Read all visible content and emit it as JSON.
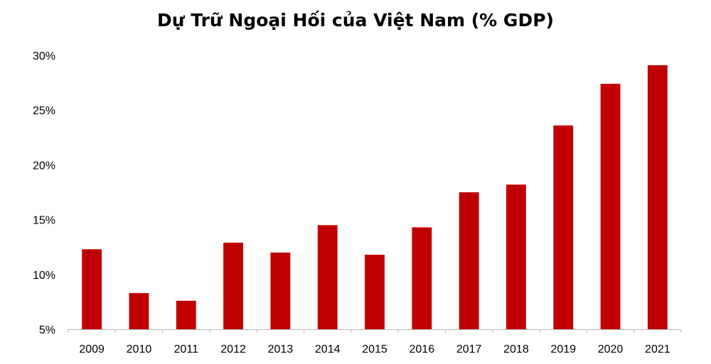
{
  "chart_data": {
    "type": "bar",
    "title": "Dự Trữ Ngoại Hối của Việt Nam (% GDP)",
    "xlabel": "",
    "ylabel": "",
    "categories": [
      "2009",
      "2010",
      "2011",
      "2012",
      "2013",
      "2014",
      "2015",
      "2016",
      "2017",
      "2018",
      "2019",
      "2020",
      "2021"
    ],
    "values": [
      12.3,
      8.3,
      7.6,
      12.9,
      12.0,
      14.5,
      11.8,
      14.3,
      17.5,
      18.2,
      23.6,
      27.4,
      29.1
    ],
    "ylim": [
      5,
      30
    ],
    "yticks": [
      5,
      10,
      15,
      20,
      25,
      30
    ],
    "ytick_labels": [
      "5%",
      "10%",
      "15%",
      "20%",
      "25%",
      "30%"
    ],
    "bar_color": "#c00000",
    "grid": false,
    "legend": "none"
  }
}
